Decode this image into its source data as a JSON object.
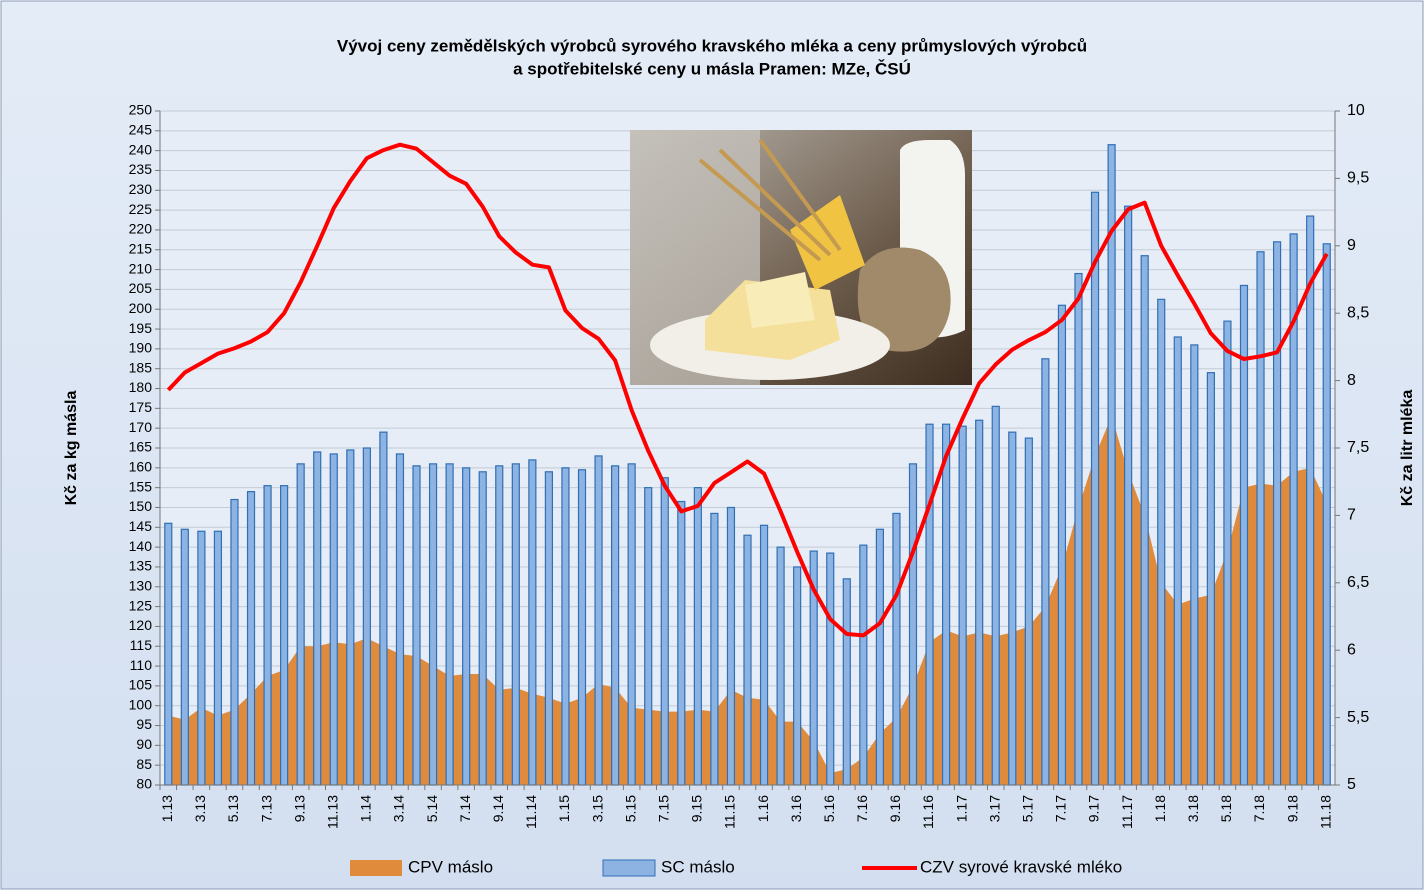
{
  "chart_data": {
    "type": "combo",
    "title": [
      "Vývoj ceny zemědělských výrobců syrového kravského mléka a ceny průmyslových výrobců",
      "a spotřebitelské ceny u másla Pramen: MZe, ČSÚ"
    ],
    "y_label": "Kč za kg másla",
    "y2_label": "Kč za litr mléka",
    "categories": [
      "1.13",
      null,
      "3.13",
      null,
      "5.13",
      null,
      "7.13",
      null,
      "9.13",
      null,
      "11.13",
      null,
      "1.14",
      null,
      "3.14",
      null,
      "5.14",
      null,
      "7.14",
      null,
      "9.14",
      null,
      "11.14",
      null,
      "1.15",
      null,
      "3.15",
      null,
      "5.15",
      null,
      "7.15",
      null,
      "9.15",
      null,
      "11.15",
      null,
      "1.16",
      null,
      "3.16",
      null,
      "5.16",
      null,
      "7.16",
      null,
      "9.16",
      null,
      "11.16",
      null,
      "1.17",
      null,
      "3.17",
      null,
      "5.17",
      null,
      "7.17",
      null,
      "9.17",
      null,
      "11.17",
      null,
      "1.18",
      null,
      "3.18",
      null,
      "5.18",
      null,
      "7.18",
      null,
      "9.18",
      null,
      "11.18"
    ],
    "series": [
      {
        "name": "CPV máslo",
        "type": "area",
        "color": "#e08a3c",
        "values": [
          97.5,
          96.5,
          99.5,
          97.5,
          99,
          103,
          107.5,
          109,
          115,
          115,
          116,
          115.5,
          117,
          115,
          113,
          112.5,
          110,
          107.5,
          108,
          108,
          104,
          104.5,
          103,
          102,
          100.5,
          102,
          105.5,
          104.5,
          99.5,
          99,
          98.5,
          98.5,
          99,
          98.5,
          104,
          102,
          101.5,
          96,
          96,
          91,
          83,
          84,
          87,
          93,
          97,
          105,
          116,
          119,
          117.5,
          118.5,
          117.5,
          118.5,
          120,
          125,
          135,
          150,
          163,
          173,
          159,
          148,
          131,
          125.5,
          127,
          128,
          139,
          155,
          156,
          155.5,
          159,
          160,
          151
        ]
      },
      {
        "name": "SC máslo",
        "type": "bar",
        "color": "#8db3e2",
        "values": [
          146,
          144.5,
          144,
          144,
          152,
          154,
          155.5,
          155.5,
          161,
          164,
          163.5,
          164.5,
          165,
          169,
          163.5,
          160.5,
          161,
          161,
          160,
          159,
          160.5,
          161,
          162,
          159,
          160,
          159.5,
          163,
          160.5,
          161,
          155,
          157.5,
          151.5,
          155,
          148.5,
          150,
          143,
          145.5,
          140,
          135,
          139,
          138.5,
          132,
          140.5,
          144.5,
          148.5,
          161,
          171,
          171,
          170.5,
          172,
          175.5,
          169,
          167.5,
          187.5,
          201,
          209,
          229.5,
          241.5,
          226,
          213.5,
          202.5,
          193,
          191,
          184,
          197,
          206,
          214.5,
          217,
          219,
          223.5,
          216.5
        ]
      },
      {
        "name": "CZV syrové kravské mléko",
        "type": "line",
        "axis": "y2",
        "color": "#ff0000",
        "values": [
          7.93,
          8.06,
          8.13,
          8.2,
          8.24,
          8.29,
          8.36,
          8.5,
          8.73,
          9.0,
          9.28,
          9.48,
          9.65,
          9.71,
          9.75,
          9.72,
          9.62,
          9.52,
          9.46,
          9.29,
          9.07,
          8.95,
          8.86,
          8.84,
          8.52,
          8.39,
          8.31,
          8.15,
          7.78,
          7.48,
          7.22,
          7.03,
          7.07,
          7.24,
          7.32,
          7.4,
          7.31,
          7.03,
          6.73,
          6.45,
          6.23,
          6.12,
          6.11,
          6.2,
          6.41,
          6.73,
          7.08,
          7.44,
          7.72,
          7.98,
          8.12,
          8.23,
          8.3,
          8.36,
          8.45,
          8.61,
          8.88,
          9.11,
          9.27,
          9.32,
          9.0,
          8.78,
          8.57,
          8.35,
          8.22,
          8.16,
          8.18,
          8.21,
          8.44,
          8.72,
          8.94
        ]
      }
    ],
    "ylim": [
      80,
      250
    ],
    "yticks": [
      80,
      85,
      90,
      95,
      100,
      105,
      110,
      115,
      120,
      125,
      130,
      135,
      140,
      145,
      150,
      155,
      160,
      165,
      170,
      175,
      180,
      185,
      190,
      195,
      200,
      205,
      210,
      215,
      220,
      225,
      230,
      235,
      240,
      245,
      250
    ],
    "y2lim": [
      5,
      10
    ],
    "y2ticks": [
      5,
      {
        "value": 5.5,
        "label": "5,5"
      },
      6,
      {
        "value": 6.5,
        "label": "6,5"
      },
      7,
      {
        "value": 7.5,
        "label": "7,5"
      },
      8,
      {
        "value": 8.5,
        "label": "8,5"
      },
      9,
      {
        "value": 9.5,
        "label": "9,5"
      },
      10
    ],
    "grid": true,
    "legend": "bottom"
  }
}
